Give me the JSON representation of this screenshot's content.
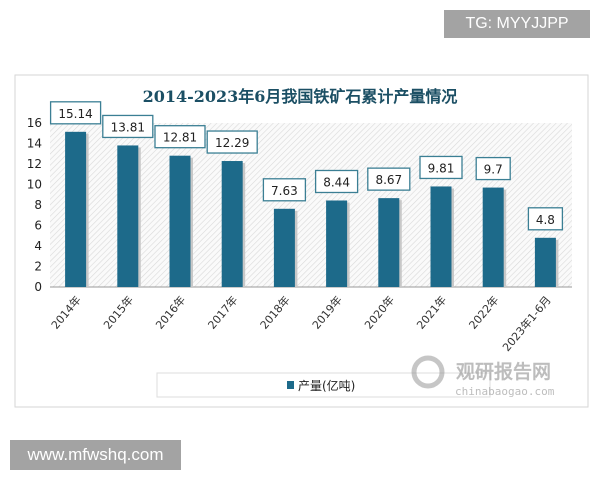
{
  "overlays": {
    "top_right": "TG: MYYJJPP",
    "bottom_left": "www.mfwshq.com"
  },
  "watermark": {
    "name": "观研报告网",
    "url": "chinabaogao.com"
  },
  "colors": {
    "bar": "#1d6a8a",
    "title": "#1b4f64"
  },
  "chart_data": {
    "type": "bar",
    "title": "2014-2023年6月我国铁矿石累计产量情况",
    "categories": [
      "2014年",
      "2015年",
      "2016年",
      "2017年",
      "2018年",
      "2019年",
      "2020年",
      "2021年",
      "2022年",
      "2023年1-6月"
    ],
    "series": [
      {
        "name": "产量(亿吨)",
        "values": [
          15.14,
          13.81,
          12.81,
          12.29,
          7.63,
          8.44,
          8.67,
          9.81,
          9.7,
          4.8
        ]
      }
    ],
    "data_labels": [
      "15.14",
      "13.81",
      "12.81",
      "12.29",
      "7.63",
      "8.44",
      "8.67",
      "9.81",
      "9.7",
      "4.8"
    ],
    "ylim": [
      0,
      16
    ],
    "yticks": [
      "0",
      "2",
      "4",
      "6",
      "8",
      "10",
      "12",
      "14",
      "16"
    ],
    "legend": "bottom",
    "xlabel": "",
    "ylabel": ""
  }
}
